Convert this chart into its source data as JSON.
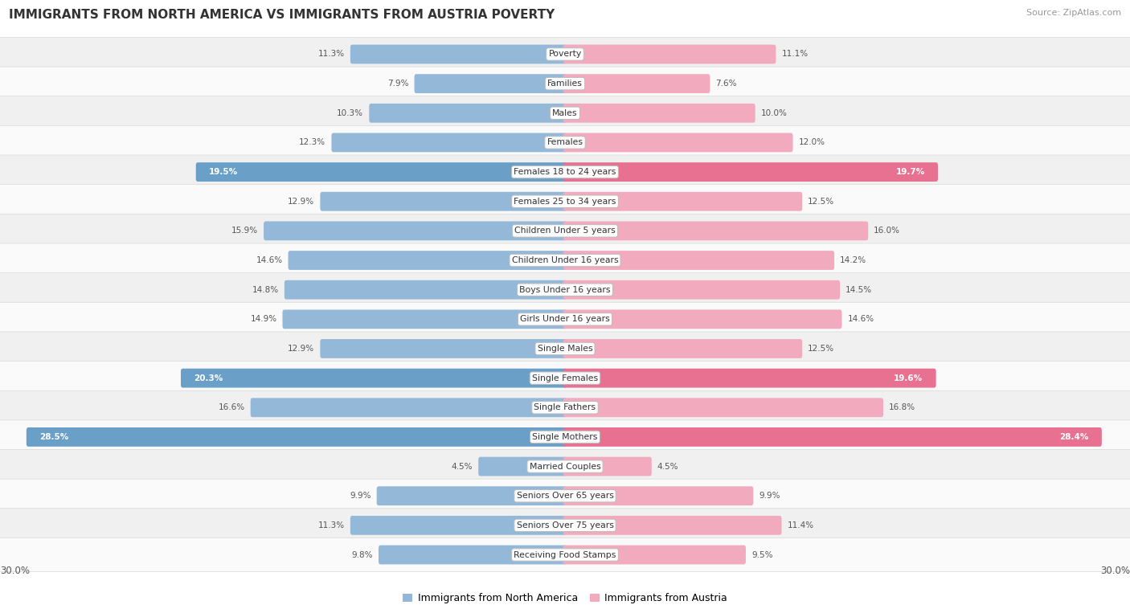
{
  "title": "IMMIGRANTS FROM NORTH AMERICA VS IMMIGRANTS FROM AUSTRIA POVERTY",
  "source": "Source: ZipAtlas.com",
  "categories": [
    "Poverty",
    "Families",
    "Males",
    "Females",
    "Females 18 to 24 years",
    "Females 25 to 34 years",
    "Children Under 5 years",
    "Children Under 16 years",
    "Boys Under 16 years",
    "Girls Under 16 years",
    "Single Males",
    "Single Females",
    "Single Fathers",
    "Single Mothers",
    "Married Couples",
    "Seniors Over 65 years",
    "Seniors Over 75 years",
    "Receiving Food Stamps"
  ],
  "north_america": [
    11.3,
    7.9,
    10.3,
    12.3,
    19.5,
    12.9,
    15.9,
    14.6,
    14.8,
    14.9,
    12.9,
    20.3,
    16.6,
    28.5,
    4.5,
    9.9,
    11.3,
    9.8
  ],
  "austria": [
    11.1,
    7.6,
    10.0,
    12.0,
    19.7,
    12.5,
    16.0,
    14.2,
    14.5,
    14.6,
    12.5,
    19.6,
    16.8,
    28.4,
    4.5,
    9.9,
    11.4,
    9.5
  ],
  "north_america_color": "#94b8d8",
  "austria_color": "#f2aabf",
  "north_america_color_high": "#6a9fc8",
  "austria_color_high": "#e87090",
  "high_threshold": 18.0,
  "xlim": 30.0,
  "legend_label_na": "Immigrants from North America",
  "legend_label_at": "Immigrants from Austria",
  "row_color_even": "#f0f0f0",
  "row_color_odd": "#fafafa"
}
